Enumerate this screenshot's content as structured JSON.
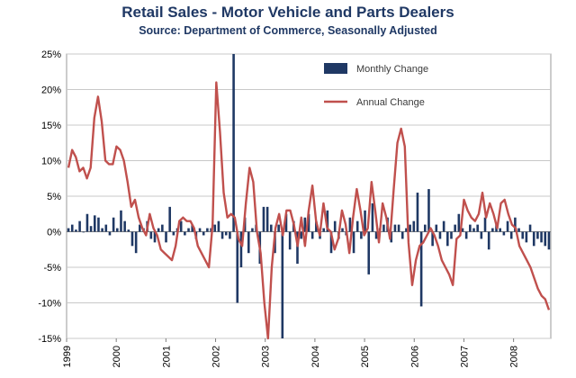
{
  "chart_data": {
    "type": "bar",
    "title": "Retail Sales - Motor Vehicle and Parts Dealers",
    "subtitle": "Source: Department of Commerce, Seasonally Adjusted",
    "xlabel": "",
    "ylabel": "",
    "ylim": [
      -15,
      25
    ],
    "y_ticks": [
      "25%",
      "20%",
      "15%",
      "10%",
      "5%",
      "0%",
      "-5%",
      "-10%",
      "-15%"
    ],
    "y_tick_values": [
      25,
      20,
      15,
      10,
      5,
      0,
      -5,
      -10,
      -15
    ],
    "x_tick_labels": [
      "1999",
      "2000",
      "2001",
      "2002",
      "2003",
      "2004",
      "2005",
      "2006",
      "2007",
      "2008"
    ],
    "x_start": 1999.0,
    "x_end": 2008.75,
    "grid": true,
    "legend_position": "top-right",
    "colors": {
      "monthly": "#1f3864",
      "annual": "#c0504d",
      "grid": "#c8c8c8",
      "title": "#1f3864"
    },
    "series": [
      {
        "name": "Monthly Change",
        "kind": "bar",
        "values": [
          0.5,
          1.0,
          0.3,
          1.5,
          0.0,
          2.5,
          0.8,
          2.3,
          2.0,
          0.5,
          1.0,
          -0.5,
          2.0,
          0.5,
          3.0,
          1.5,
          0.3,
          -2.0,
          -3.0,
          1.0,
          0.5,
          1.5,
          -1.0,
          -1.5,
          0.5,
          1.0,
          -1.5,
          3.5,
          -0.5,
          0.5,
          1.5,
          -0.5,
          0.5,
          1.0,
          -1.0,
          0.5,
          -0.5,
          0.5,
          0.5,
          1.0,
          1.5,
          -1.0,
          -0.5,
          -1.0,
          25.0,
          -10.0,
          -5.0,
          2.0,
          -3.0,
          0.5,
          1.0,
          -4.5,
          3.5,
          3.5,
          1.0,
          -3.0,
          1.0,
          -15.0,
          2.5,
          -2.5,
          1.5,
          -4.5,
          -1.0,
          2.0,
          2.5,
          -1.0,
          1.5,
          -1.0,
          0.5,
          3.0,
          -3.0,
          1.5,
          -1.0,
          0.5,
          -0.5,
          2.0,
          -3.0,
          1.5,
          -1.0,
          3.0,
          -6.0,
          4.0,
          -1.0,
          0.5,
          1.0,
          2.0,
          -1.5,
          1.0,
          1.0,
          -1.0,
          0.5,
          1.0,
          1.5,
          5.5,
          -10.5,
          1.0,
          6.0,
          -2.0,
          1.0,
          -1.0,
          1.5,
          -2.0,
          -1.0,
          1.0,
          2.5,
          0.5,
          -1.0,
          1.0,
          0.5,
          1.0,
          -1.0,
          2.0,
          -2.5,
          0.5,
          1.0,
          0.5,
          -0.5,
          1.5,
          -1.0,
          2.0,
          0.5,
          -1.0,
          -1.5,
          1.0,
          -2.0,
          -1.0,
          -1.5,
          -2.0,
          -2.5
        ]
      },
      {
        "name": "Annual Change",
        "kind": "line",
        "values": [
          9,
          11.5,
          10.5,
          8.5,
          9,
          7.5,
          9,
          16,
          19,
          15.5,
          10,
          9.5,
          9.5,
          12,
          11.5,
          10,
          7,
          3.5,
          4.5,
          2,
          0.5,
          -0.5,
          2.5,
          0.5,
          -0.5,
          -2.5,
          -3,
          -3.5,
          -4,
          -2,
          1.5,
          2.0,
          1.5,
          1.5,
          0.5,
          -2,
          -3,
          -4,
          -5,
          1,
          21,
          14,
          5.5,
          2,
          2.5,
          2,
          -1,
          -2,
          4,
          9,
          7,
          0,
          -3,
          -10,
          -15,
          -5,
          0.5,
          2.5,
          -0.5,
          3,
          3,
          1,
          -2,
          2,
          -2,
          3,
          6.5,
          1.5,
          -0.5,
          4,
          0.5,
          0,
          -2.5,
          -1,
          3,
          1,
          -3,
          2,
          6,
          3,
          -0.5,
          0.5,
          7,
          3,
          -1.5,
          4,
          2,
          -1,
          6,
          12.5,
          14.5,
          12,
          -1.5,
          -7.5,
          -4,
          -2,
          -1.5,
          -0.5,
          0.5,
          -0.5,
          -2,
          -4,
          -5,
          -6,
          -7.5,
          -1,
          -0.5,
          4.5,
          3,
          2,
          1.5,
          2.5,
          5.5,
          2,
          4,
          2.5,
          0.5,
          4,
          4.5,
          2.5,
          1,
          0.5,
          -2,
          -3,
          -4,
          -5,
          -6.5,
          -8,
          -9,
          -9.5,
          -11
        ]
      }
    ]
  }
}
